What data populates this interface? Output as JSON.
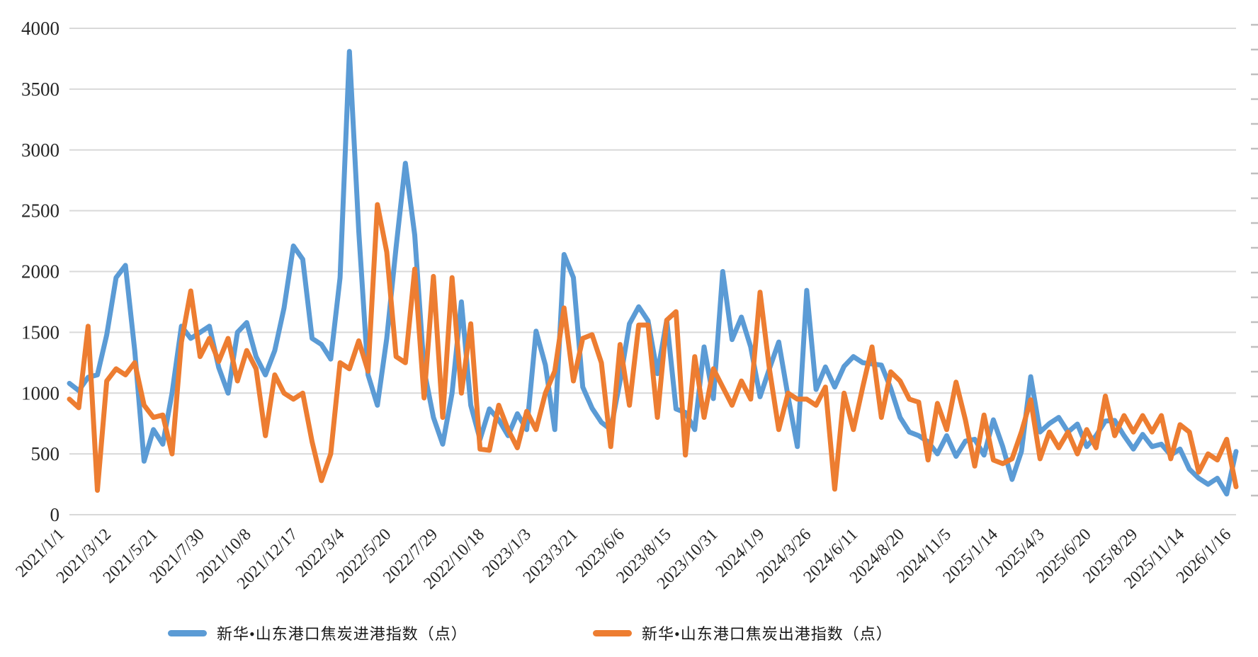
{
  "chart_data": {
    "type": "line",
    "title": "",
    "xlabel": "",
    "ylabel": "",
    "ylim": [
      0,
      4000
    ],
    "yticks": [
      0,
      500,
      1000,
      1500,
      2000,
      2500,
      3000,
      3500,
      4000
    ],
    "grid": true,
    "legend_position": "bottom",
    "x_labels": [
      "2021/1/1",
      "2021/3/12",
      "2021/5/21",
      "2021/7/30",
      "2021/10/8",
      "2021/12/17",
      "2022/3/4",
      "2022/5/20",
      "2022/7/29",
      "2022/10/18",
      "2023/1/3",
      "2023/3/21",
      "2023/6/6",
      "2023/8/15",
      "2023/10/31",
      "2024/1/9",
      "2024/3/26",
      "2024/6/11",
      "2024/8/20",
      "2024/11/5",
      "2025/1/14",
      "2025/4/3",
      "2025/6/20",
      "2025/8/29",
      "2025/11/14",
      "2026/1/16"
    ],
    "points_per_label_interval": 5,
    "series": [
      {
        "name": "新华•山东港口焦炭进港指数（点）",
        "color": "#5B9BD5",
        "values": [
          1080,
          1020,
          1130,
          1150,
          1480,
          1950,
          2050,
          1350,
          440,
          700,
          580,
          1000,
          1550,
          1450,
          1500,
          1550,
          1210,
          1000,
          1500,
          1580,
          1300,
          1150,
          1350,
          1700,
          2210,
          2100,
          1450,
          1400,
          1280,
          1950,
          3810,
          2330,
          1150,
          900,
          1450,
          2200,
          2890,
          2300,
          1190,
          800,
          580,
          1000,
          1750,
          900,
          620,
          870,
          780,
          650,
          830,
          700,
          1510,
          1230,
          700,
          2140,
          1950,
          1050,
          875,
          760,
          700,
          1100,
          1570,
          1710,
          1595,
          1160,
          1600,
          870,
          840,
          700,
          1380,
          955,
          2000,
          1440,
          1625,
          1380,
          970,
          1200,
          1420,
          970,
          560,
          1845,
          1030,
          1215,
          1050,
          1220,
          1300,
          1250,
          1240,
          1230,
          1040,
          800,
          680,
          650,
          600,
          500,
          650,
          480,
          605,
          620,
          490,
          780,
          560,
          290,
          520,
          1135,
          680,
          750,
          800,
          680,
          745,
          560,
          650,
          770,
          775,
          650,
          540,
          660,
          560,
          580,
          490,
          540,
          375,
          300,
          250,
          300,
          170,
          520
        ]
      },
      {
        "name": "新华•山东港口焦炭出港指数（点）",
        "color": "#ED7D31",
        "values": [
          950,
          880,
          1550,
          200,
          1100,
          1200,
          1150,
          1250,
          900,
          800,
          820,
          500,
          1420,
          1840,
          1300,
          1450,
          1260,
          1450,
          1100,
          1350,
          1200,
          650,
          1150,
          1000,
          950,
          1000,
          600,
          280,
          500,
          1250,
          1200,
          1430,
          1180,
          2550,
          2160,
          1300,
          1250,
          2020,
          960,
          1960,
          800,
          1950,
          1000,
          1570,
          540,
          530,
          900,
          700,
          550,
          850,
          700,
          1000,
          1180,
          1700,
          1100,
          1450,
          1480,
          1250,
          560,
          1400,
          900,
          1560,
          1560,
          800,
          1600,
          1670,
          490,
          1300,
          800,
          1200,
          1050,
          900,
          1100,
          950,
          1830,
          1200,
          700,
          1000,
          950,
          950,
          900,
          1050,
          210,
          1000,
          700,
          1050,
          1380,
          800,
          1175,
          1100,
          950,
          925,
          450,
          915,
          700,
          1090,
          780,
          400,
          820,
          450,
          420,
          460,
          680,
          945,
          460,
          680,
          550,
          680,
          500,
          700,
          550,
          975,
          650,
          815,
          680,
          815,
          680,
          815,
          460,
          740,
          680,
          350,
          500,
          450,
          620,
          230
        ]
      }
    ],
    "style": {
      "grid_color": "#D9D9D9",
      "minor_tick_color": "#BFBFBF",
      "tick_label_color": "#262626",
      "line_width": 7
    }
  },
  "legend": {
    "items": [
      {
        "label": "新华•山东港口焦炭进港指数（点）",
        "color": "#5B9BD5"
      },
      {
        "label": "新华•山东港口焦炭出港指数（点）",
        "color": "#ED7D31"
      }
    ]
  }
}
